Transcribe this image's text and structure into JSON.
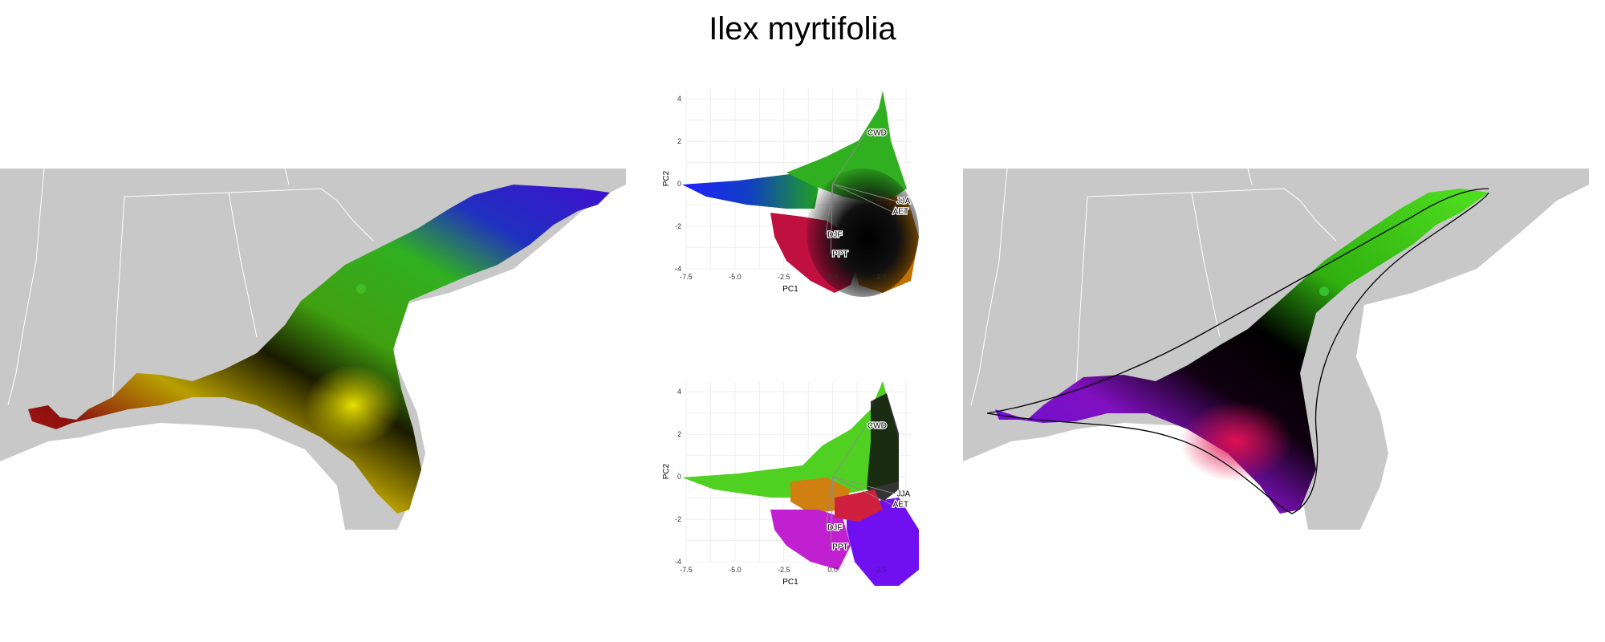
{
  "title": "Ilex myrtifolia",
  "colors": {
    "background": "#ffffff",
    "land": "#c8c8c8",
    "state_borders": "#ffffff",
    "panel_grid": "#ebebeb",
    "vectors": "#8c8c8c"
  },
  "chart_data": [
    {
      "panel": "map-left",
      "type": "map",
      "region": "southeastern United States",
      "fill": "species range colored by climate PCA (RGB)"
    },
    {
      "panel": "pca-top",
      "type": "scatter",
      "xlabel": "PC1",
      "ylabel": "PC2",
      "xlim": [
        -7.5,
        4
      ],
      "ylim": [
        -4,
        4.5
      ],
      "xticks": [
        "-7.5",
        "-5.0",
        "-2.5",
        "0.0",
        "2.5"
      ],
      "yticks": [
        "-4",
        "-2",
        "0",
        "2",
        "4"
      ],
      "grid": true,
      "vectors": [
        {
          "name": "CWD",
          "x": 1.7,
          "y": 2.4
        },
        {
          "name": "JJA",
          "x": 3.2,
          "y": -0.8
        },
        {
          "name": "AET",
          "x": 3.0,
          "y": -1.3
        },
        {
          "name": "DJF",
          "x": -0.35,
          "y": -2.4
        },
        {
          "name": "PPT",
          "x": -0.1,
          "y": -3.3
        }
      ]
    },
    {
      "panel": "pca-bottom",
      "type": "scatter",
      "xlabel": "PC1",
      "ylabel": "PC2",
      "xlim": [
        -7.5,
        4
      ],
      "ylim": [
        -4,
        4.5
      ],
      "xticks": [
        "-7.5",
        "-5.0",
        "-2.5",
        "0.0",
        "2.5"
      ],
      "yticks": [
        "-4",
        "-2",
        "0",
        "2",
        "4"
      ],
      "grid": true,
      "vectors": [
        {
          "name": "CWD",
          "x": 1.7,
          "y": 2.4
        },
        {
          "name": "JJA",
          "x": 3.2,
          "y": -0.8
        },
        {
          "name": "AET",
          "x": 3.0,
          "y": -1.3
        },
        {
          "name": "DJF",
          "x": -0.35,
          "y": -2.4
        },
        {
          "name": "PPT",
          "x": -0.1,
          "y": -3.3
        }
      ]
    },
    {
      "panel": "map-right",
      "type": "map",
      "region": "southeastern United States",
      "fill": "species range colored by climate PCA (RGB), with range outline"
    }
  ]
}
